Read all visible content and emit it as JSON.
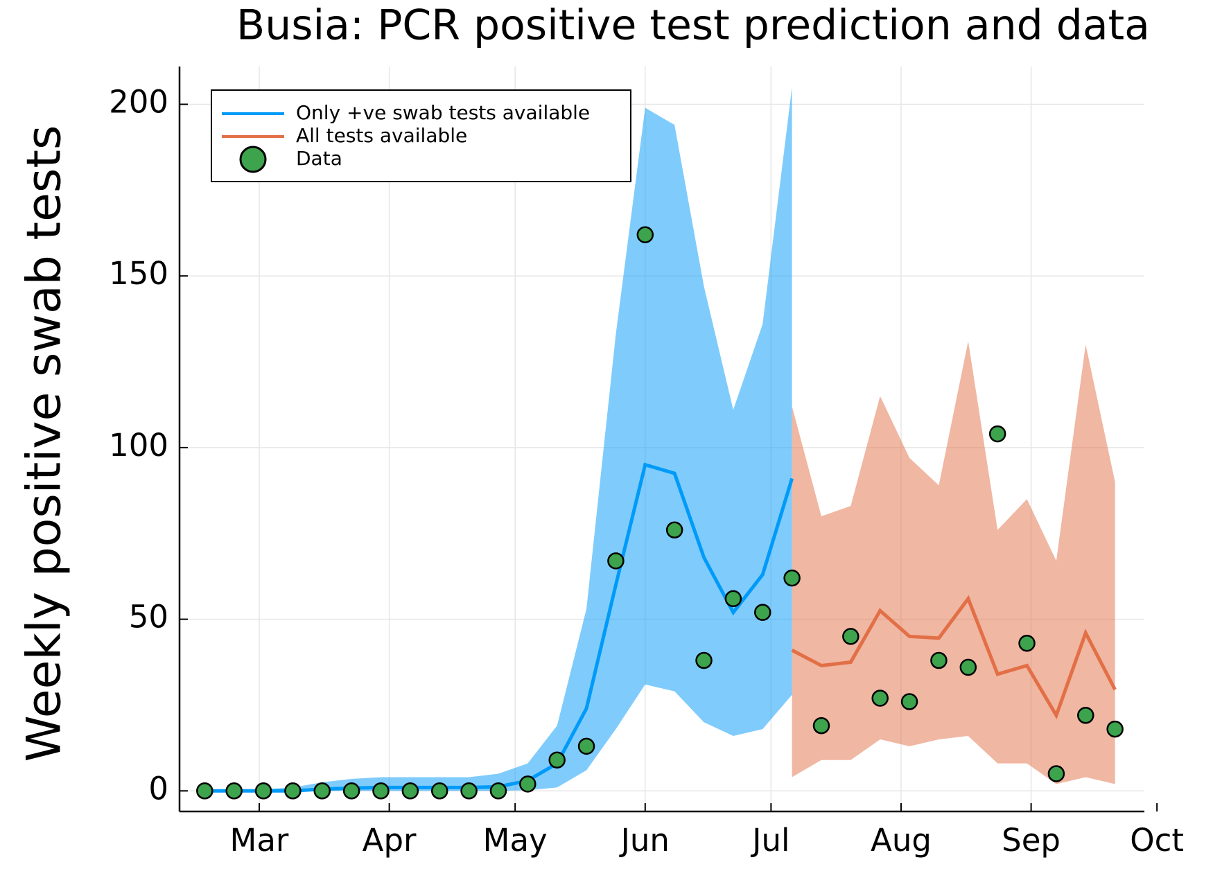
{
  "chart_data": {
    "type": "line",
    "title": "Busia: PCR positive test prediction and data",
    "y_label": "Weekly positive swab tests",
    "x": [
      -13,
      -6,
      1,
      8,
      15,
      22,
      29,
      36,
      43,
      50,
      57,
      64,
      71,
      78,
      85,
      92,
      99,
      106,
      113,
      120,
      127,
      134,
      141,
      148,
      155,
      162,
      169,
      176,
      183,
      190,
      197,
      204
    ],
    "xlim": [
      -19,
      211
    ],
    "xticks": [
      {
        "value": 0,
        "label": "Mar"
      },
      {
        "value": 31,
        "label": "Apr"
      },
      {
        "value": 61,
        "label": "May"
      },
      {
        "value": 92,
        "label": "Jun"
      },
      {
        "value": 122,
        "label": "Jul"
      },
      {
        "value": 153,
        "label": "Aug"
      },
      {
        "value": 184,
        "label": "Sep"
      },
      {
        "value": 214,
        "label": "Oct"
      }
    ],
    "ylim": [
      -6,
      211
    ],
    "yticks": [
      0,
      50,
      100,
      150,
      200
    ],
    "grid": true,
    "legend": "top-left",
    "series": [
      {
        "name": "Only +ve swab tests available",
        "color": "#009af9",
        "values": [
          0,
          0,
          0,
          0,
          0.5,
          0.8,
          1,
          1,
          1,
          1,
          1.2,
          3,
          8,
          24,
          60,
          95,
          92.5,
          68,
          52,
          63,
          91,
          null,
          null,
          null,
          null,
          null,
          null,
          null,
          null,
          null,
          null,
          null
        ],
        "lower": [
          0,
          0,
          0,
          0,
          0,
          0,
          0,
          0,
          0,
          0,
          0,
          0.2,
          1,
          6,
          18,
          31,
          29,
          20,
          16,
          18,
          28,
          null,
          null,
          null,
          null,
          null,
          null,
          null,
          null,
          null,
          null,
          null
        ],
        "upper": [
          0,
          0,
          0.5,
          1,
          2.5,
          3.5,
          4,
          4,
          4,
          4,
          5,
          8,
          19,
          53,
          133,
          199,
          194,
          147,
          111,
          136,
          205,
          null,
          null,
          null,
          null,
          null,
          null,
          null,
          null,
          null,
          null,
          null
        ]
      },
      {
        "name": "All tests available",
        "color": "#e26f46",
        "values": [
          null,
          null,
          null,
          null,
          null,
          null,
          null,
          null,
          null,
          null,
          null,
          null,
          null,
          null,
          null,
          null,
          null,
          null,
          null,
          null,
          41,
          36.5,
          37.5,
          52.5,
          45,
          44.5,
          56,
          34,
          36.5,
          22,
          46,
          29.5
        ],
        "lower": [
          null,
          null,
          null,
          null,
          null,
          null,
          null,
          null,
          null,
          null,
          null,
          null,
          null,
          null,
          null,
          null,
          null,
          null,
          null,
          null,
          4,
          9,
          9,
          15,
          13,
          15,
          16,
          8,
          8,
          2,
          4,
          2
        ],
        "upper": [
          null,
          null,
          null,
          null,
          null,
          null,
          null,
          null,
          null,
          null,
          null,
          null,
          null,
          null,
          null,
          null,
          null,
          null,
          null,
          null,
          112,
          80,
          83,
          115,
          97,
          89,
          131,
          76,
          85,
          67,
          130,
          90
        ]
      },
      {
        "name": "Data",
        "type": "scatter",
        "color": "#3da44d",
        "values": [
          0,
          0,
          0,
          0,
          0,
          0,
          0,
          0,
          0,
          0,
          0,
          2,
          9,
          13,
          67,
          162,
          76,
          38,
          56,
          52,
          62,
          19,
          45,
          27,
          26,
          38,
          36,
          104,
          43,
          5,
          22,
          18
        ]
      }
    ]
  }
}
